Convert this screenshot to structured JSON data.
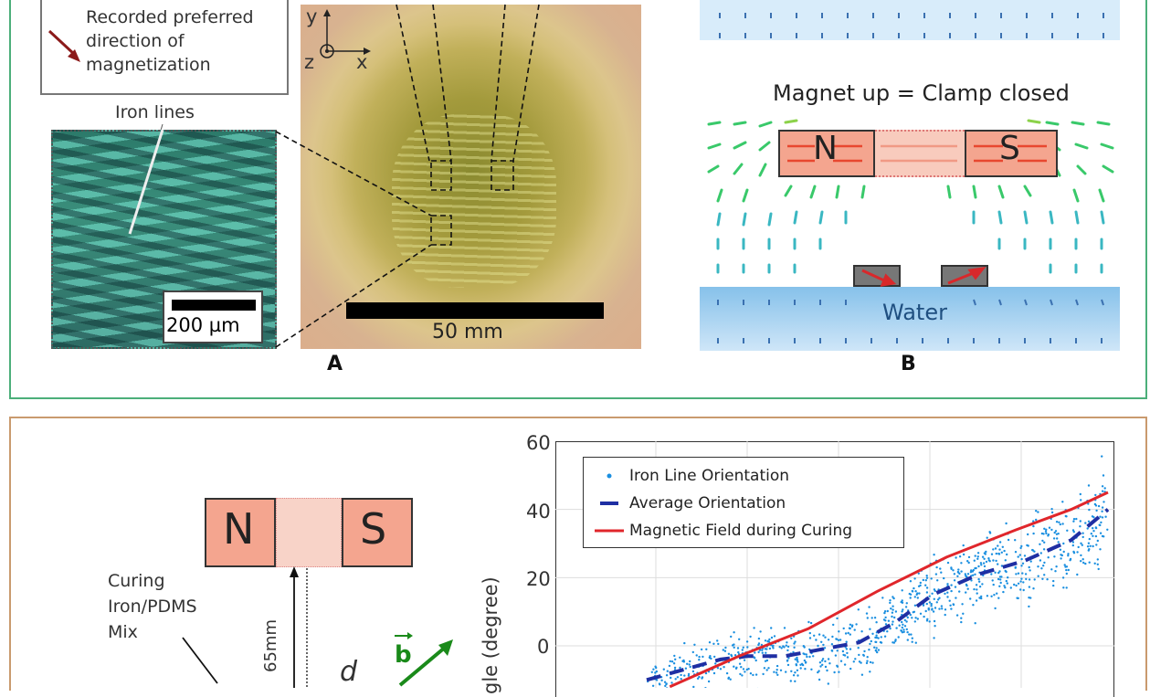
{
  "panel_a": {
    "legend": [
      "Recorded preferred",
      "direction of",
      "magnetization"
    ],
    "axis_y": "y",
    "axis_z": "z",
    "axis_x": "x",
    "iron_label": "Iron lines",
    "inset_scale": "200 µm",
    "photo_scale": "50 mm",
    "label": "A"
  },
  "panel_b": {
    "caption": "Magnet up = Clamp closed",
    "north": "N",
    "south": "S",
    "water": "Water",
    "label": "B"
  },
  "panel_c": {
    "north": "N",
    "south": "S",
    "curing_lines": [
      "Curing",
      "Iron/PDMS",
      "Mix"
    ],
    "distance": "65mm",
    "d": "d",
    "b": "b"
  },
  "chart_data": {
    "type": "scatter",
    "ylabel": "gle (degree)",
    "y_ticks": [
      "60",
      "40",
      "20",
      "0"
    ],
    "ylim": [
      -10,
      60
    ],
    "grid": true,
    "legend_position": "top-left",
    "series": [
      {
        "name": "Iron Line Orientation",
        "kind": "scatter",
        "color": "#1a8fe0"
      },
      {
        "name": "Average Orientation",
        "kind": "dashed-line",
        "color": "#1f2fa3",
        "points": [
          [
            0.0,
            -10
          ],
          [
            0.08,
            -7
          ],
          [
            0.16,
            -4
          ],
          [
            0.22,
            -3
          ],
          [
            0.3,
            -3
          ],
          [
            0.38,
            -1
          ],
          [
            0.46,
            1
          ],
          [
            0.54,
            7
          ],
          [
            0.62,
            15
          ],
          [
            0.72,
            21
          ],
          [
            0.82,
            25
          ],
          [
            0.92,
            31
          ],
          [
            1.0,
            40
          ]
        ]
      },
      {
        "name": "Magnetic Field during Curing",
        "kind": "solid-line",
        "color": "#e0262b",
        "points": [
          [
            0.05,
            -12
          ],
          [
            0.2,
            -3
          ],
          [
            0.35,
            5
          ],
          [
            0.5,
            16
          ],
          [
            0.65,
            26
          ],
          [
            0.8,
            34
          ],
          [
            0.92,
            40
          ],
          [
            1.0,
            45
          ]
        ]
      }
    ]
  }
}
